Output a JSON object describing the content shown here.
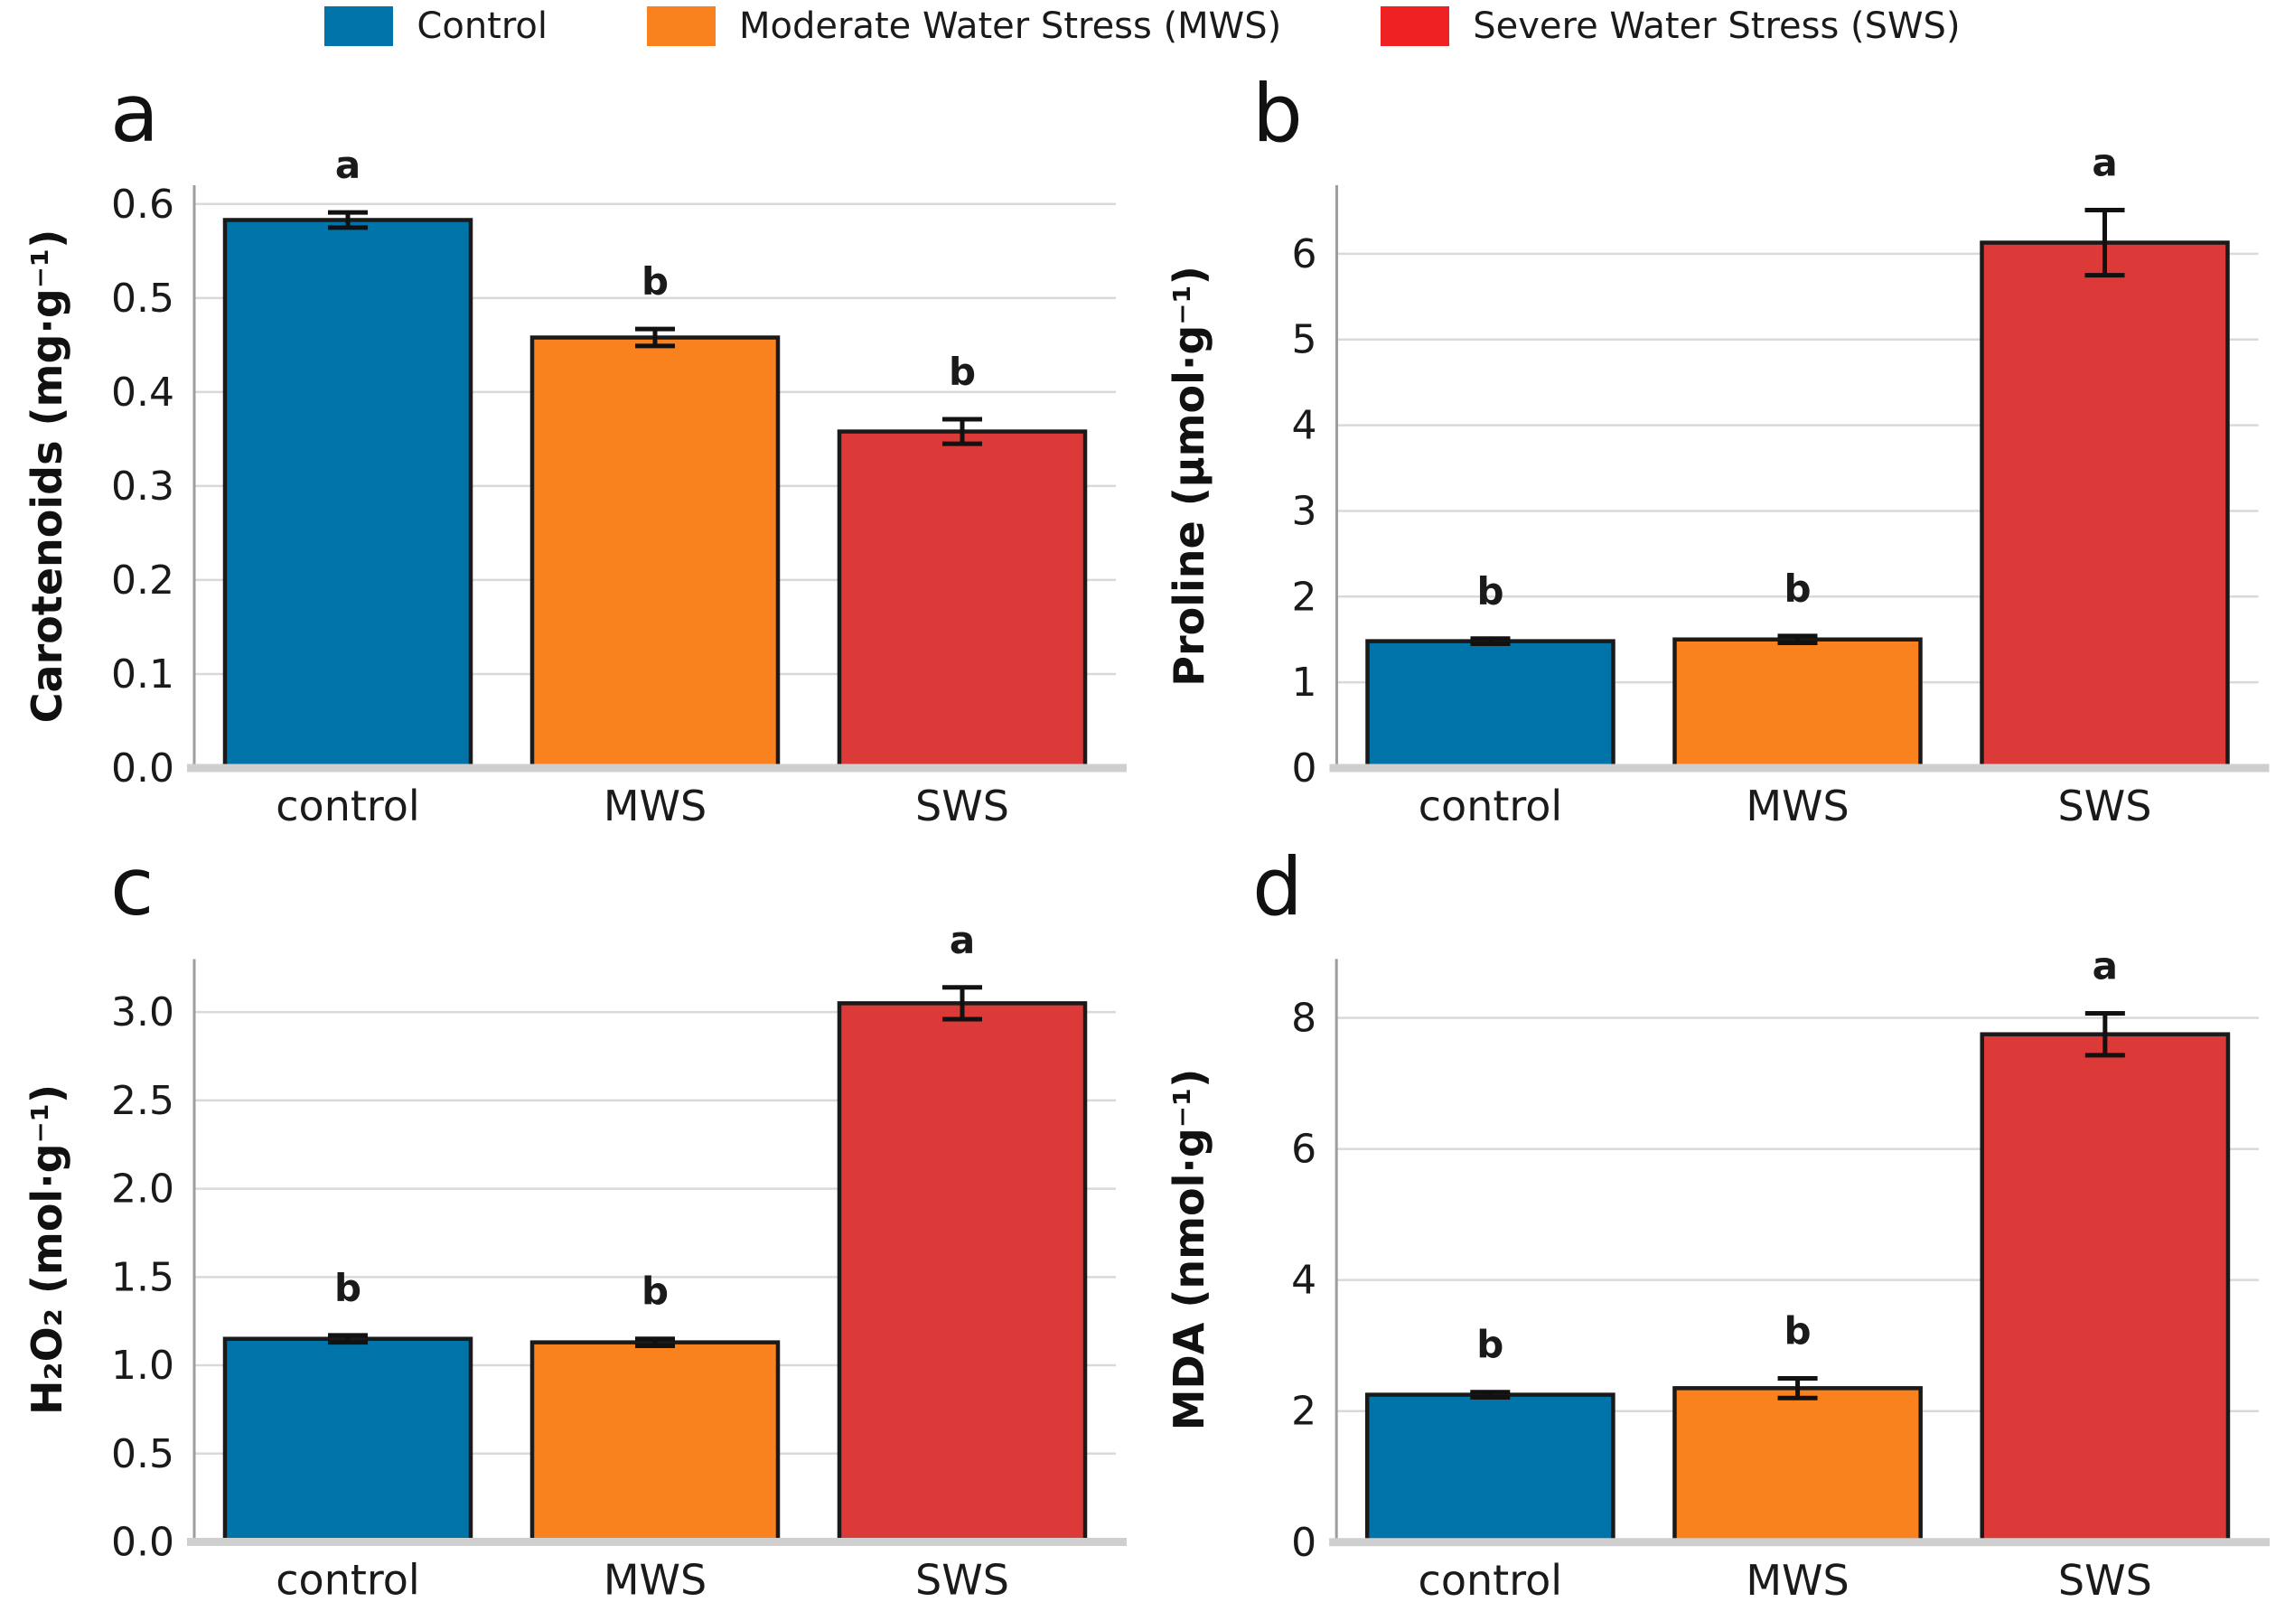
{
  "figure": {
    "background": "#ffffff",
    "text_color": "#1a1a1a",
    "grid_color": "#d9d9d9",
    "spine_color": "#9e9e9e",
    "baseline_color": "#cfcfcf",
    "bar_edge_color": "#1a1a1a"
  },
  "legend": {
    "position": "top-center",
    "items": [
      {
        "label": "Control",
        "color": "#0074a8"
      },
      {
        "label": "Moderate Water Stress (MWS)",
        "color": "#fa821e"
      },
      {
        "label": "Severe Water Stress (SWS)",
        "color": "#ee2222"
      }
    ]
  },
  "chart_data": [
    {
      "type": "bar",
      "panel_letter": "a",
      "ylabel": "Carotenoids (mg·g⁻¹)",
      "xlabel": "",
      "categories": [
        "control",
        "MWS",
        "SWS"
      ],
      "values": [
        0.583,
        0.458,
        0.358
      ],
      "errors": [
        0.008,
        0.009,
        0.013
      ],
      "sig_letters": [
        "a",
        "b",
        "b"
      ],
      "bar_colors": [
        "#0074a8",
        "#fa821e",
        "#dc3a38"
      ],
      "yticks": [
        0.0,
        0.1,
        0.2,
        0.3,
        0.4,
        0.5,
        0.6
      ],
      "ytick_decimals": 1,
      "ylim": [
        0,
        0.62
      ],
      "grid": true
    },
    {
      "type": "bar",
      "panel_letter": "b",
      "ylabel": "Proline (μmol·g⁻¹)",
      "xlabel": "",
      "categories": [
        "control",
        "MWS",
        "SWS"
      ],
      "values": [
        1.48,
        1.5,
        6.13
      ],
      "errors": [
        0.03,
        0.04,
        0.38
      ],
      "sig_letters": [
        "b",
        "b",
        "a"
      ],
      "bar_colors": [
        "#0074a8",
        "#fa821e",
        "#dc3a38"
      ],
      "yticks": [
        0,
        1,
        2,
        3,
        4,
        5,
        6
      ],
      "ytick_decimals": 0,
      "ylim": [
        0,
        6.8
      ],
      "grid": true
    },
    {
      "type": "bar",
      "panel_letter": "c",
      "ylabel": "H₂O₂ (mol·g⁻¹)",
      "xlabel": "",
      "categories": [
        "control",
        "MWS",
        "SWS"
      ],
      "values": [
        1.15,
        1.13,
        3.05
      ],
      "errors": [
        0.02,
        0.02,
        0.09
      ],
      "sig_letters": [
        "b",
        "b",
        "a"
      ],
      "bar_colors": [
        "#0074a8",
        "#fa821e",
        "#dc3a38"
      ],
      "yticks": [
        0.0,
        0.5,
        1.0,
        1.5,
        2.0,
        2.5,
        3.0
      ],
      "ytick_decimals": 1,
      "ylim": [
        0,
        3.3
      ],
      "grid": true
    },
    {
      "type": "bar",
      "panel_letter": "d",
      "ylabel": "MDA (nmol·g⁻¹)",
      "xlabel": "",
      "categories": [
        "control",
        "MWS",
        "SWS"
      ],
      "values": [
        2.25,
        2.35,
        7.75
      ],
      "errors": [
        0.04,
        0.15,
        0.32
      ],
      "sig_letters": [
        "b",
        "b",
        "a"
      ],
      "bar_colors": [
        "#0074a8",
        "#fa821e",
        "#dc3a38"
      ],
      "yticks": [
        0,
        2,
        4,
        6,
        8
      ],
      "ytick_decimals": 0,
      "ylim": [
        0,
        8.9
      ],
      "grid": true
    }
  ]
}
